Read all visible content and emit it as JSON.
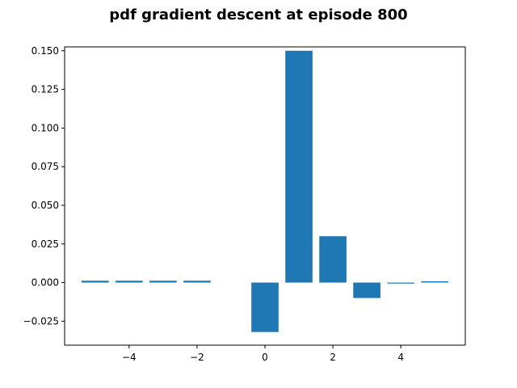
{
  "chart_data": {
    "type": "bar",
    "title": "pdf gradient descent at episode 800",
    "xlabel": "",
    "ylabel": "",
    "xlim": [
      -5.9,
      5.9
    ],
    "ylim": [
      -0.0405,
      0.1525
    ],
    "x": [
      -5,
      -4,
      -3,
      -2,
      -1,
      0,
      1,
      2,
      3,
      4,
      5
    ],
    "values": [
      0.0012,
      0.0012,
      0.0012,
      0.0012,
      0.0,
      -0.032,
      0.15,
      0.03,
      -0.01,
      -0.0005,
      0.0008
    ],
    "bar_width": 0.8,
    "bar_color": "#1f77b4",
    "x_ticks": [
      -4,
      -2,
      0,
      2,
      4
    ],
    "x_tick_labels": [
      "−4",
      "−2",
      "0",
      "2",
      "4"
    ],
    "y_ticks": [
      -0.025,
      0.0,
      0.025,
      0.05,
      0.075,
      0.1,
      0.125,
      0.15
    ],
    "y_tick_labels": [
      "−0.025",
      "0.000",
      "0.025",
      "0.050",
      "0.075",
      "0.100",
      "0.125",
      "0.150"
    ],
    "grid": false,
    "legend": "none"
  }
}
